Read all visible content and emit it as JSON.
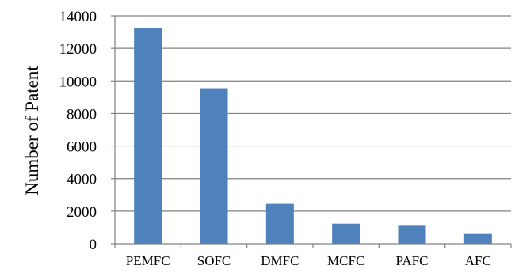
{
  "chart_data": {
    "type": "bar",
    "title": "",
    "xlabel": "",
    "ylabel": "Number of Patent",
    "categories": [
      "PEMFC",
      "SOFC",
      "DMFC",
      "MCFC",
      "PAFC",
      "AFC"
    ],
    "values": [
      13250,
      9550,
      2450,
      1230,
      1150,
      600
    ],
    "ylim": [
      0,
      14000
    ],
    "yticks": [
      "0",
      "2000",
      "4000",
      "6000",
      "8000",
      "10000",
      "12000",
      "14000"
    ],
    "ytick_values": [
      0,
      2000,
      4000,
      6000,
      8000,
      10000,
      12000,
      14000
    ],
    "grid": true,
    "legend": "none",
    "bar_color": "#4f81bd"
  }
}
